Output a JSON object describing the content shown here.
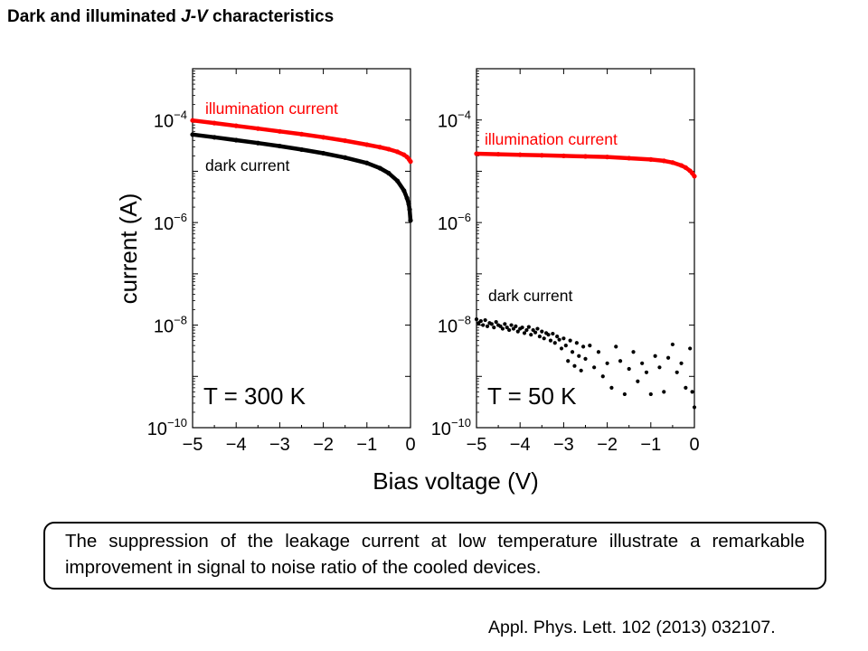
{
  "slide": {
    "title_prefix": "Dark and illuminated ",
    "title_emph": "J-V",
    "title_suffix": " characteristics",
    "caption": "The suppression of the leakage current at low temperature illustrate a remarkable improvement in signal to noise ratio of the cooled devices.",
    "reference": "Appl. Phys. Lett. 102 (2013) 032107."
  },
  "chart_data": [
    {
      "type": "scatter",
      "annotation": "T = 300 K",
      "xlabel": "Bias voltage (V)",
      "ylabel": "current (A)",
      "xlim": [
        -5,
        0
      ],
      "ylim": [
        1e-10,
        0.001
      ],
      "yscale": "log",
      "x_tick_labels": [
        "−5",
        "−4",
        "−3",
        "−2",
        "−1",
        "0"
      ],
      "y_tick_labels": [
        "10−",
        "10−",
        "10−",
        "10−"
      ],
      "y_tick_exponents": [
        "10",
        "8",
        "6",
        "4"
      ],
      "y_tick_values": [
        1e-10,
        1e-08,
        1e-06,
        0.0001
      ],
      "series": [
        {
          "name": "illumination current",
          "color": "#ff0000",
          "x": [
            -5,
            -4.5,
            -4,
            -3.5,
            -3,
            -2.5,
            -2,
            -1.5,
            -1,
            -0.7,
            -0.5,
            -0.3,
            -0.15,
            -0.08,
            -0.03,
            0
          ],
          "y": [
            9.8e-05,
            8.7e-05,
            7.7e-05,
            6.8e-05,
            6e-05,
            5.3e-05,
            4.6e-05,
            3.95e-05,
            3.3e-05,
            2.95e-05,
            2.7e-05,
            2.4e-05,
            2.1e-05,
            1.9e-05,
            1.7e-05,
            1.55e-05
          ]
        },
        {
          "name": "dark current",
          "color": "#000000",
          "x": [
            -5,
            -4.5,
            -4,
            -3.5,
            -3,
            -2.5,
            -2,
            -1.5,
            -1,
            -0.7,
            -0.5,
            -0.3,
            -0.15,
            -0.08,
            -0.04,
            -0.02,
            0
          ],
          "y": [
            5.2e-05,
            4.6e-05,
            4.05e-05,
            3.55e-05,
            3.1e-05,
            2.65e-05,
            2.25e-05,
            1.85e-05,
            1.45e-05,
            1.15e-05,
            9.2e-06,
            6.5e-06,
            4.2e-06,
            3e-06,
            2.3e-06,
            1.8e-06,
            1.1e-06
          ]
        }
      ]
    },
    {
      "type": "scatter",
      "annotation": "T = 50 K",
      "xlabel": "Bias voltage (V)",
      "ylabel": "current (A)",
      "xlim": [
        -5,
        0
      ],
      "ylim": [
        1e-10,
        0.001
      ],
      "yscale": "log",
      "x_tick_labels": [
        "−5",
        "−4",
        "−3",
        "−2",
        "−1",
        "0"
      ],
      "y_tick_labels": [
        "10−",
        "10−",
        "10−",
        "10−"
      ],
      "y_tick_exponents": [
        "10",
        "8",
        "6",
        "4"
      ],
      "y_tick_values": [
        1e-10,
        1e-08,
        1e-06,
        0.0001
      ],
      "series": [
        {
          "name": "illumination current",
          "color": "#ff0000",
          "x": [
            -5,
            -4.5,
            -4,
            -3.5,
            -3,
            -2.5,
            -2,
            -1.5,
            -1,
            -0.7,
            -0.5,
            -0.3,
            -0.2,
            -0.1,
            -0.05,
            0
          ],
          "y": [
            2.2e-05,
            2.15e-05,
            2.1e-05,
            2.05e-05,
            2e-05,
            1.95e-05,
            1.9e-05,
            1.8e-05,
            1.7e-05,
            1.6e-05,
            1.48e-05,
            1.3e-05,
            1.18e-05,
            1.02e-05,
            9.2e-06,
            8e-06
          ]
        },
        {
          "name": "dark current",
          "color": "#000000",
          "x": [
            -5,
            -4.95,
            -4.9,
            -4.85,
            -4.8,
            -4.75,
            -4.7,
            -4.65,
            -4.6,
            -4.55,
            -4.5,
            -4.45,
            -4.4,
            -4.35,
            -4.3,
            -4.25,
            -4.2,
            -4.15,
            -4.1,
            -4.05,
            -4.0,
            -3.95,
            -3.9,
            -3.85,
            -3.8,
            -3.75,
            -3.7,
            -3.65,
            -3.6,
            -3.55,
            -3.5,
            -3.45,
            -3.4,
            -3.35,
            -3.3,
            -3.25,
            -3.2,
            -3.15,
            -3.1,
            -3.05,
            -3.0,
            -2.95,
            -2.9,
            -2.85,
            -2.8,
            -2.75,
            -2.7,
            -2.65,
            -2.6,
            -2.55,
            -2.5,
            -2.4,
            -2.3,
            -2.2,
            -2.1,
            -2.0,
            -1.9,
            -1.8,
            -1.7,
            -1.6,
            -1.5,
            -1.4,
            -1.3,
            -1.2,
            -1.1,
            -1.0,
            -0.9,
            -0.8,
            -0.7,
            -0.6,
            -0.5,
            -0.4,
            -0.3,
            -0.2,
            -0.1,
            -0.05,
            0
          ],
          "y": [
            1.3e-08,
            1.1e-08,
            1.2e-08,
            1e-08,
            1.25e-08,
            9.5e-09,
            1.1e-08,
            1.05e-08,
            9e-09,
            1.15e-08,
            1e-08,
            9.5e-09,
            8.5e-09,
            1.05e-08,
            9e-09,
            8e-09,
            1e-08,
            8.5e-09,
            9.5e-09,
            7.5e-09,
            8.5e-09,
            9e-09,
            7e-09,
            8e-09,
            9.2e-09,
            6.5e-09,
            8e-09,
            7.2e-09,
            8.5e-09,
            6e-09,
            7.5e-09,
            5.5e-09,
            7e-09,
            6.5e-09,
            5e-09,
            6.8e-09,
            4.5e-09,
            6e-09,
            5.2e-09,
            3.5e-09,
            5.5e-09,
            4e-09,
            2e-09,
            5e-09,
            3e-09,
            1.6e-09,
            4.5e-09,
            2.5e-09,
            1.3e-09,
            3.8e-09,
            2.2e-09,
            4e-09,
            1.5e-09,
            3e-09,
            1e-09,
            1.8e-09,
            6e-10,
            3.8e-09,
            2e-09,
            4.5e-10,
            1.4e-09,
            3e-09,
            8e-10,
            1.8e-09,
            1.2e-09,
            4.5e-10,
            2.5e-09,
            1.5e-09,
            5e-10,
            2.3e-09,
            4.2e-09,
            1.2e-09,
            1.8e-09,
            6e-10,
            3.5e-09,
            5e-10,
            2.5e-10
          ]
        }
      ]
    }
  ]
}
